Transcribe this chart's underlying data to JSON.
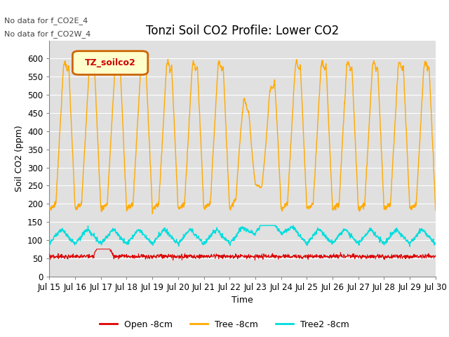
{
  "title": "Tonzi Soil CO2 Profile: Lower CO2",
  "xlabel": "Time",
  "ylabel": "Soil CO2 (ppm)",
  "annotations": [
    "No data for f_CO2E_4",
    "No data for f_CO2W_4"
  ],
  "legend_box_text": "TZ_soilco2",
  "legend_entries": [
    "Open -8cm",
    "Tree -8cm",
    "Tree2 -8cm"
  ],
  "line_colors": [
    "#dd0000",
    "#ffaa00",
    "#00dddd"
  ],
  "ylim": [
    0,
    650
  ],
  "yticks": [
    0,
    50,
    100,
    150,
    200,
    250,
    300,
    350,
    400,
    450,
    500,
    550,
    600
  ],
  "background_color": "#ffffff",
  "plot_bg_color": "#e0e0e0",
  "grid_color": "#ffffff",
  "title_fontsize": 12,
  "axis_fontsize": 9,
  "tick_fontsize": 8.5
}
